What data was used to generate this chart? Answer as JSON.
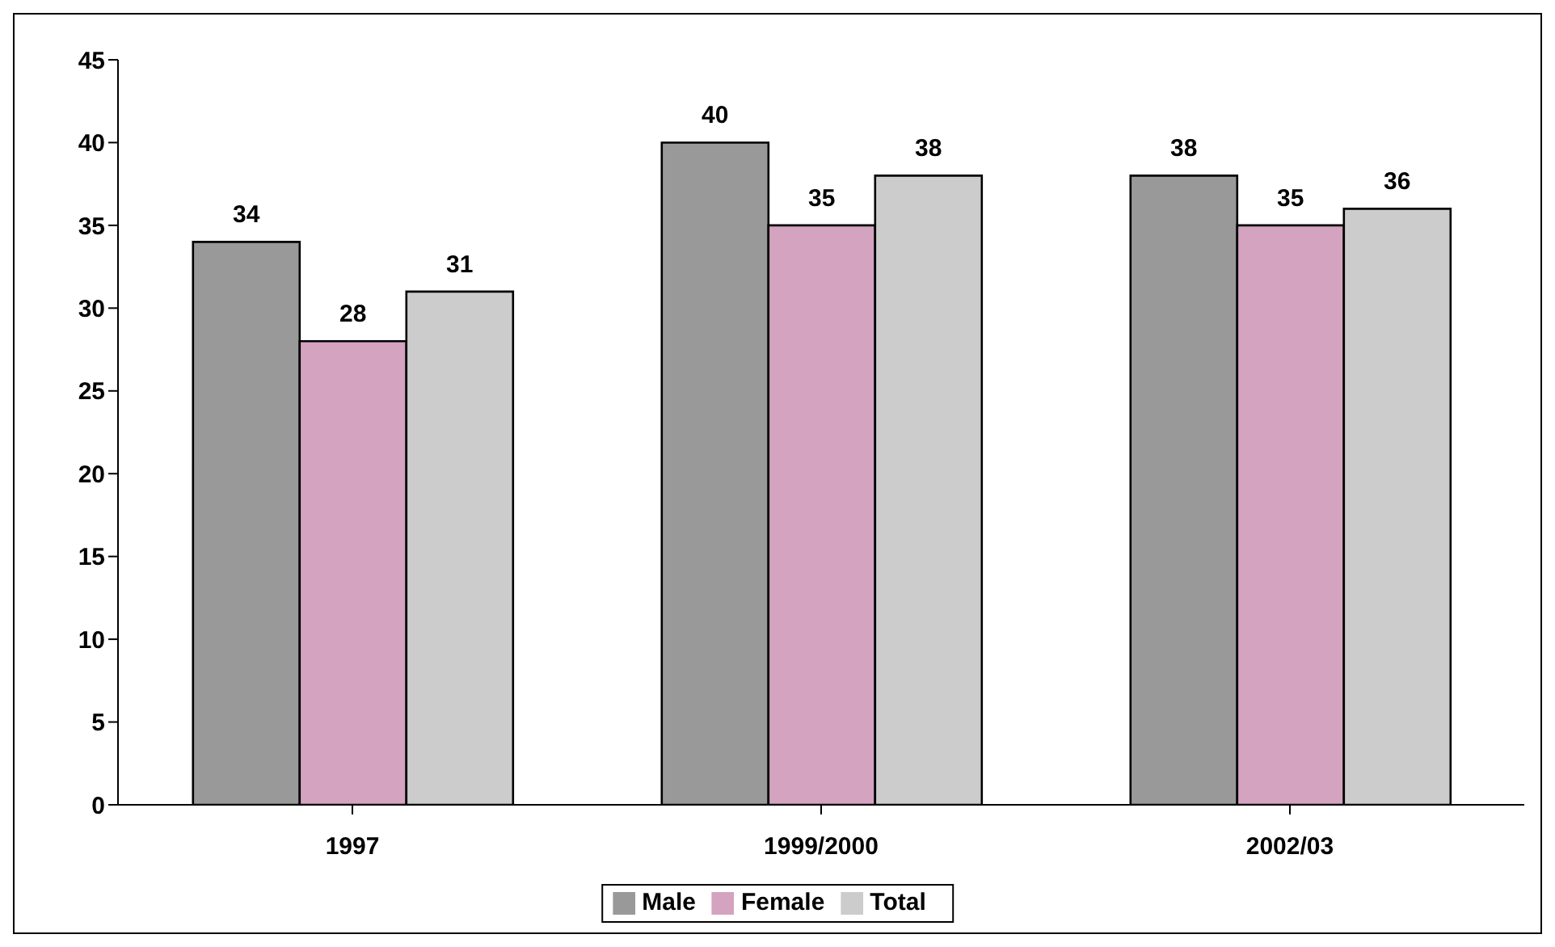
{
  "chart_data": {
    "type": "bar",
    "categories": [
      "1997",
      "1999/2000",
      "2002/03"
    ],
    "series": [
      {
        "name": "Male",
        "color": "#999999",
        "values": [
          34,
          40,
          38
        ]
      },
      {
        "name": "Female",
        "color": "#d4a3bf",
        "values": [
          28,
          35,
          35
        ]
      },
      {
        "name": "Total",
        "color": "#cccccc",
        "values": [
          31,
          38,
          36
        ]
      }
    ],
    "ylim": [
      0,
      45
    ],
    "yticks": [
      0,
      5,
      10,
      15,
      20,
      25,
      30,
      35,
      40,
      45
    ],
    "data_labels": true,
    "grid": false,
    "legend": "bottom"
  }
}
